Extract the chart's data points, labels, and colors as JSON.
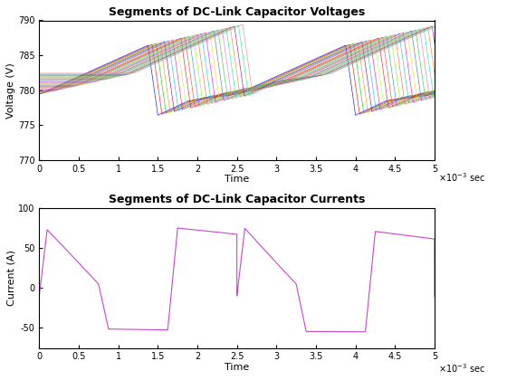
{
  "title1": "Segments of DC-Link Capacitor Voltages",
  "title2": "Segments of DC-Link Capacitor Currents",
  "xlabel": "Time",
  "ylabel1": "Voltage (V)",
  "ylabel2": "Current (A)",
  "xlim": [
    0,
    5
  ],
  "ylim1": [
    770,
    790
  ],
  "ylim2": [
    -75,
    100
  ],
  "yticks1": [
    770,
    775,
    780,
    785,
    790
  ],
  "yticks2": [
    -50,
    0,
    50,
    100
  ],
  "xticks": [
    0,
    0.5,
    1,
    1.5,
    2,
    2.5,
    3,
    3.5,
    4,
    4.5,
    5
  ],
  "xtick_labels": [
    "0",
    "0.5",
    "1",
    "1.5",
    "2",
    "2.5",
    "3",
    "3.5",
    "4",
    "4.5",
    "5"
  ],
  "ytick_labels1": [
    "770",
    "775",
    "780",
    "785",
    "790"
  ],
  "ytick_labels2": [
    "-50",
    "0",
    "50",
    "100"
  ],
  "n_voltage_segments": 24,
  "voltage_colors": [
    "#0000FF",
    "#FF0000",
    "#00CC00",
    "#FF8C00",
    "#8B008B",
    "#00BFFF",
    "#FF1493",
    "#ADFF2F",
    "#DC143C",
    "#FF4500",
    "#1E90FF",
    "#7FFF00",
    "#FF6347",
    "#00CED1",
    "#FF00FF",
    "#FFD700",
    "#4169E1",
    "#32CD32",
    "#FF69B4",
    "#00FA9A",
    "#FF8000",
    "#9400D3",
    "#00FF7F",
    "#F08080"
  ],
  "current_color": "#CC44CC",
  "base_voltage": 781.0,
  "freq_hz": 400,
  "background_color": "#ffffff"
}
